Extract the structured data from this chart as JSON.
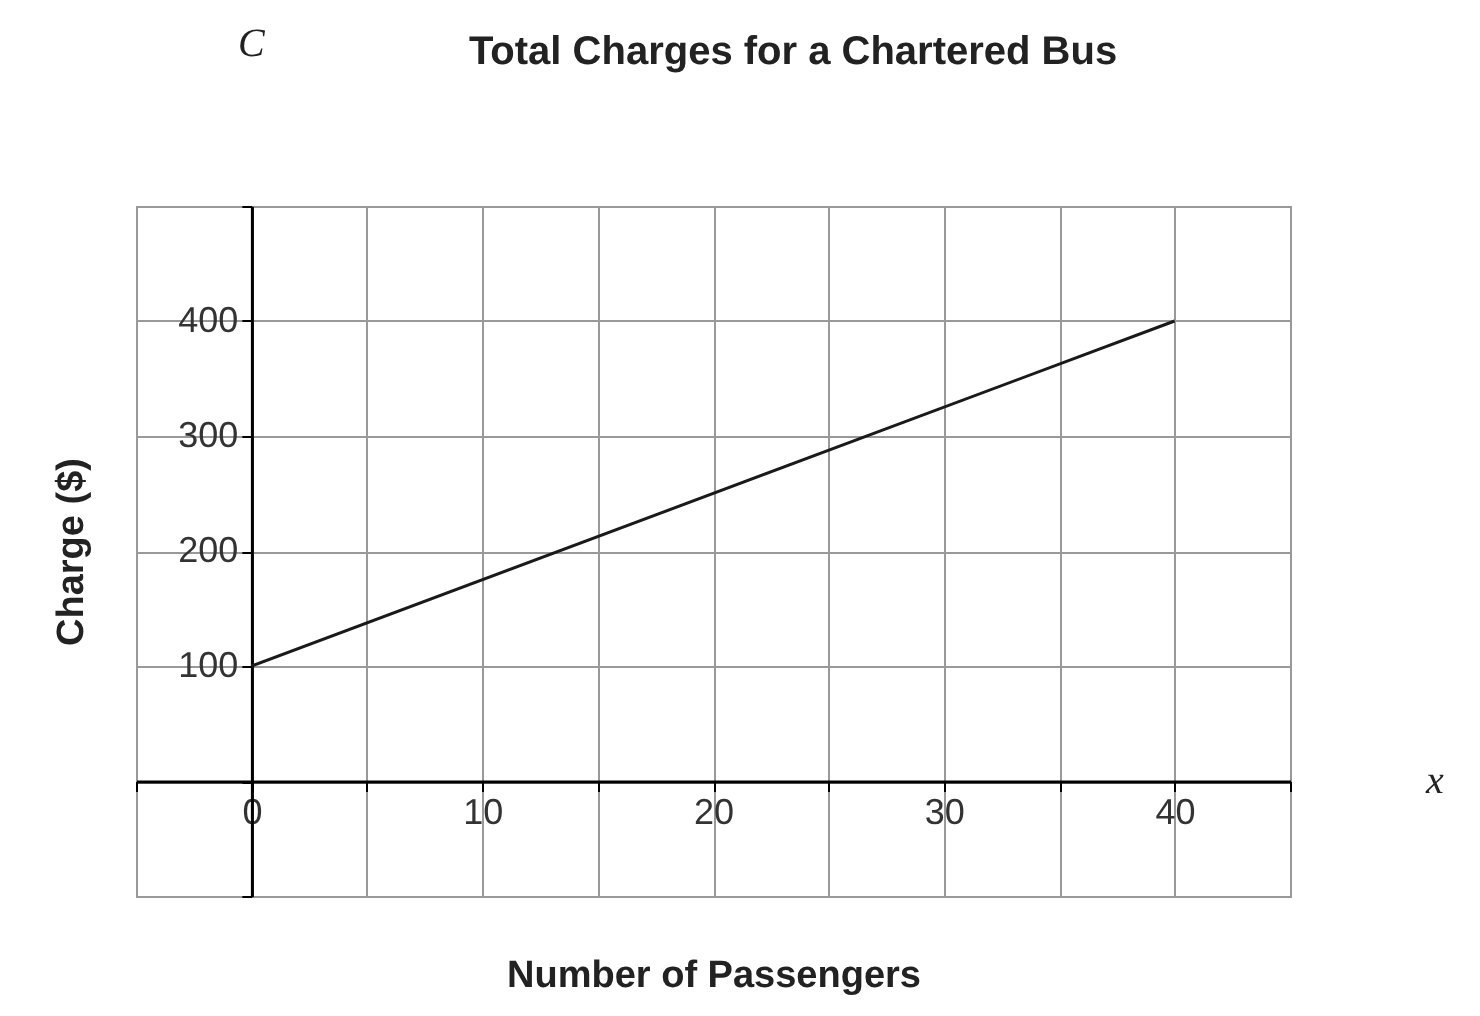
{
  "chart_data": {
    "type": "line",
    "title": "Total Charges for a Chartered Bus",
    "xlabel": "Number of Passengers",
    "ylabel": "Charge ($)",
    "annotations": [
      "C",
      "x"
    ],
    "x": [
      0,
      40
    ],
    "values": [
      100,
      400
    ],
    "color": "#1a1a1a",
    "xlim": [
      -5,
      45
    ],
    "xticks": [
      {
        "value": -5,
        "label": null
      },
      0,
      {
        "value": 5,
        "label": null
      },
      10,
      {
        "value": 15,
        "label": null
      },
      20,
      {
        "value": 25,
        "label": null
      },
      30,
      {
        "value": 35,
        "label": null
      },
      40,
      {
        "value": 45,
        "label": null
      }
    ],
    "ylim": [
      -100,
      500
    ],
    "yticks": [
      {
        "value": -100,
        "label": null
      },
      {
        "value": 0,
        "label": null
      },
      100,
      200,
      300,
      400,
      {
        "value": 500,
        "label": null
      }
    ],
    "grid": true,
    "marker": "none",
    "line_style": "solid"
  }
}
